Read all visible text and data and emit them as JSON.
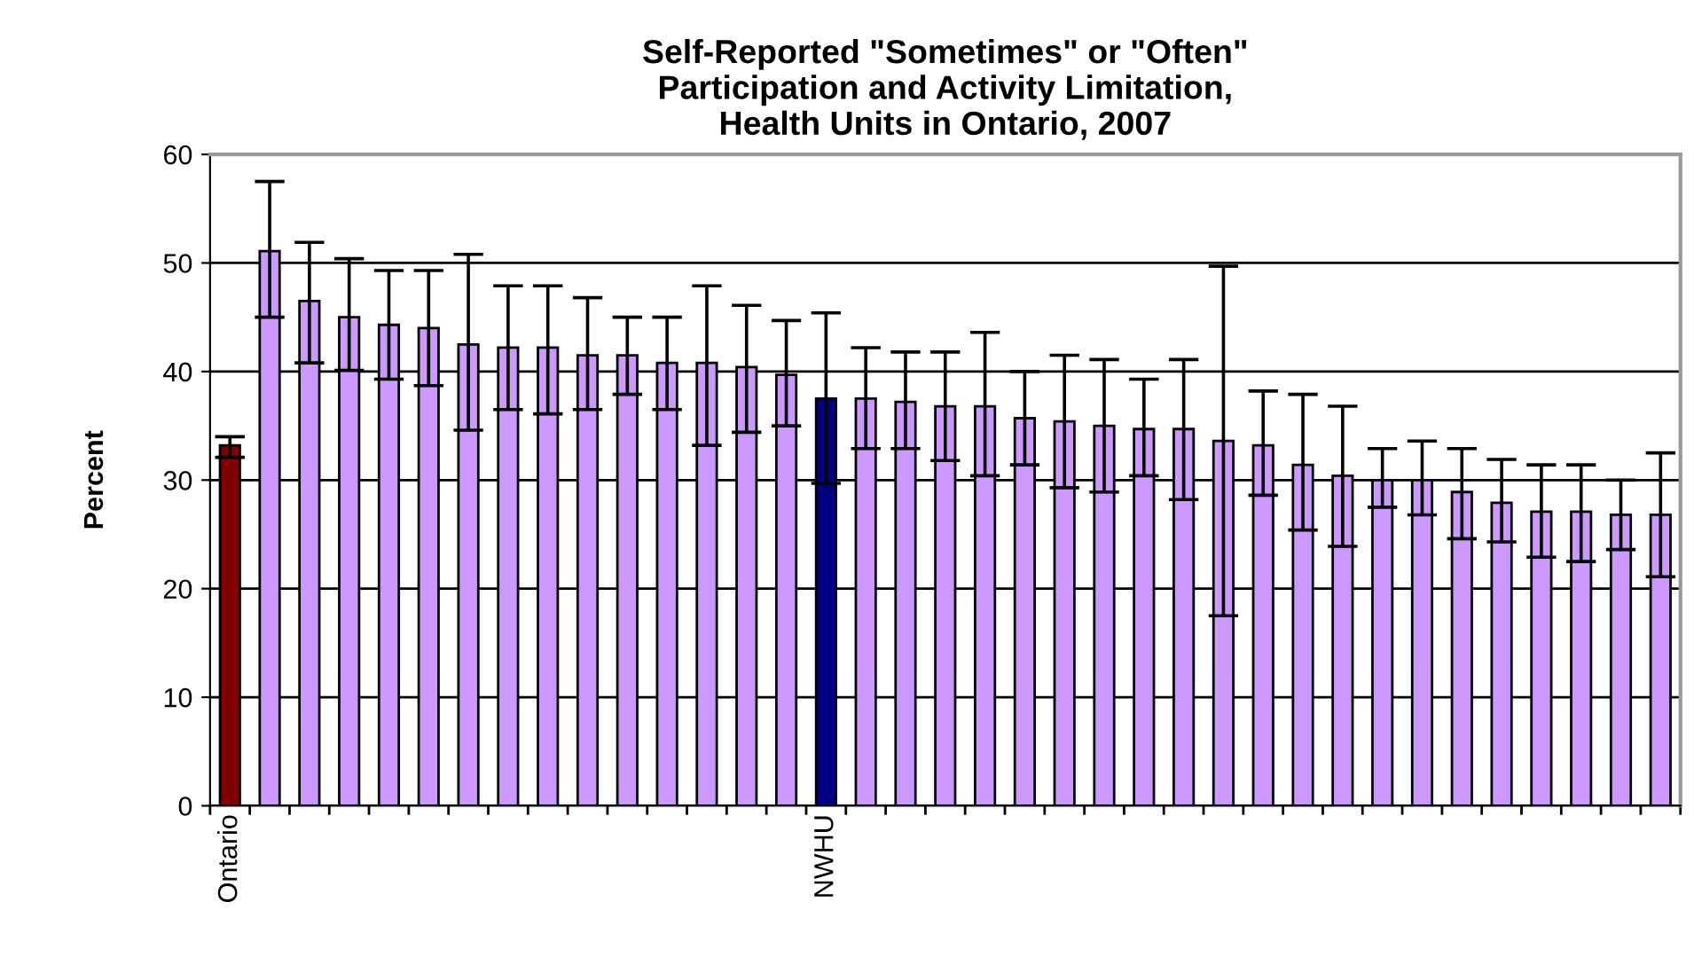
{
  "chart_data": {
    "type": "bar",
    "title": "Self-Reported \"Sometimes\" or \"Often\"\nParticipation and Activity Limitation,\nHealth Units in Ontario, 2007",
    "ylabel": "Percent",
    "categories": [
      "Ontario",
      null,
      null,
      null,
      null,
      null,
      null,
      null,
      null,
      null,
      null,
      null,
      null,
      null,
      null,
      "NWHU",
      null,
      null,
      null,
      null,
      null,
      null,
      null,
      null,
      null,
      null,
      null,
      null,
      null,
      null,
      null,
      null,
      null,
      null,
      null,
      null,
      null
    ],
    "values": [
      33.2,
      51.1,
      46.5,
      45.0,
      44.3,
      44.0,
      42.5,
      42.2,
      42.2,
      41.5,
      41.5,
      40.8,
      40.8,
      40.4,
      39.7,
      37.5,
      37.5,
      37.2,
      36.8,
      36.8,
      35.7,
      35.4,
      35.0,
      34.7,
      34.7,
      33.6,
      33.2,
      31.4,
      30.4,
      30.0,
      30.0,
      28.9,
      27.9,
      27.1,
      27.1,
      26.8,
      26.8
    ],
    "errors": [
      [
        32.1,
        34.0
      ],
      [
        45.0,
        57.5
      ],
      [
        40.8,
        51.9
      ],
      [
        40.1,
        50.4
      ],
      [
        39.3,
        49.3
      ],
      [
        38.7,
        49.3
      ],
      [
        34.6,
        50.8
      ],
      [
        36.5,
        47.9
      ],
      [
        36.1,
        47.9
      ],
      [
        36.5,
        46.8
      ],
      [
        37.9,
        45.0
      ],
      [
        36.5,
        45.0
      ],
      [
        33.2,
        47.9
      ],
      [
        34.4,
        46.1
      ],
      [
        35.0,
        44.7
      ],
      [
        29.7,
        45.4
      ],
      [
        32.9,
        42.2
      ],
      [
        32.9,
        41.8
      ],
      [
        31.8,
        41.8
      ],
      [
        30.4,
        43.6
      ],
      [
        31.4,
        40.0
      ],
      [
        29.3,
        41.5
      ],
      [
        28.9,
        41.1
      ],
      [
        30.4,
        39.3
      ],
      [
        28.2,
        41.1
      ],
      [
        17.5,
        49.7
      ],
      [
        28.6,
        38.2
      ],
      [
        25.4,
        37.9
      ],
      [
        23.9,
        36.8
      ],
      [
        27.5,
        32.9
      ],
      [
        26.8,
        33.6
      ],
      [
        24.6,
        32.9
      ],
      [
        24.3,
        31.9
      ],
      [
        22.9,
        31.4
      ],
      [
        22.5,
        31.4
      ],
      [
        23.6,
        30.0
      ],
      [
        21.1,
        32.5
      ]
    ],
    "colors": [
      "#800000",
      "#cc99ff",
      "#cc99ff",
      "#cc99ff",
      "#cc99ff",
      "#cc99ff",
      "#cc99ff",
      "#cc99ff",
      "#cc99ff",
      "#cc99ff",
      "#cc99ff",
      "#cc99ff",
      "#cc99ff",
      "#cc99ff",
      "#cc99ff",
      "#000080",
      "#cc99ff",
      "#cc99ff",
      "#cc99ff",
      "#cc99ff",
      "#cc99ff",
      "#cc99ff",
      "#cc99ff",
      "#cc99ff",
      "#cc99ff",
      "#cc99ff",
      "#cc99ff",
      "#cc99ff",
      "#cc99ff",
      "#cc99ff",
      "#cc99ff",
      "#cc99ff",
      "#cc99ff",
      "#cc99ff",
      "#cc99ff",
      "#cc99ff",
      "#cc99ff"
    ],
    "ylim": [
      0,
      60
    ],
    "yticks": [
      0,
      10,
      20,
      30,
      40,
      50,
      60
    ],
    "grid": "y",
    "legend": false
  }
}
